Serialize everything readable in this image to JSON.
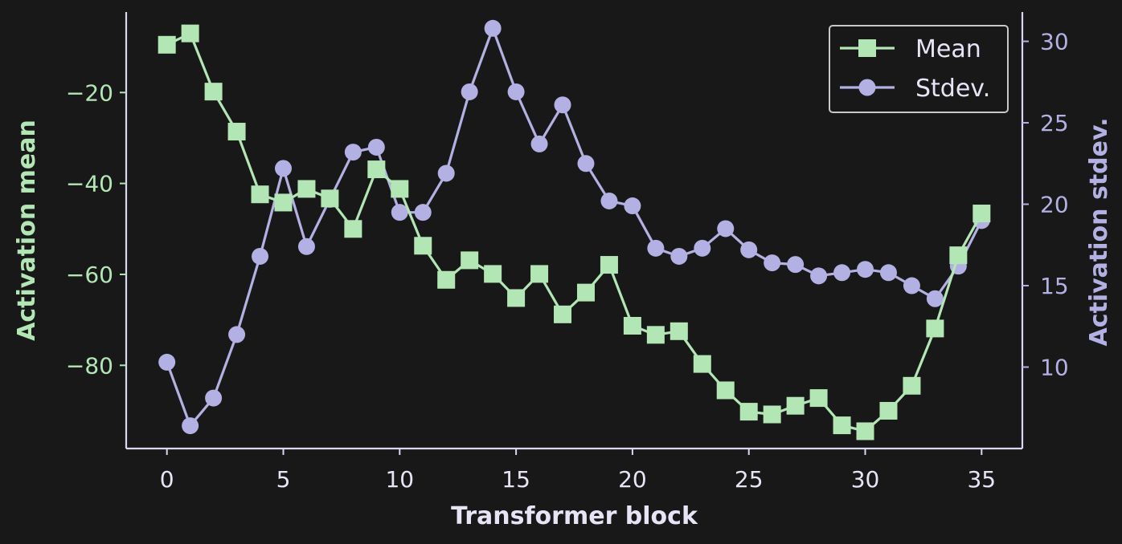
{
  "colors": {
    "background": "#181818",
    "mean": "#b3e6b5",
    "stdev": "#b3b0e3",
    "axis": "#d8d8f0",
    "x_text": "#e6e4f5",
    "legend_border": "#c8c8c8"
  },
  "chart_data": {
    "type": "line",
    "x_axis": {
      "label": "Transformer block",
      "ticks": [
        0,
        5,
        10,
        15,
        20,
        25,
        30,
        35
      ],
      "range": [
        -1.75,
        36.75
      ]
    },
    "y_left": {
      "label": "Activation mean",
      "ticks": [
        -20,
        -40,
        -60,
        -80
      ],
      "tick_labels": [
        "−20",
        "−40",
        "−60",
        "−80"
      ],
      "range": [
        -98.3,
        -2.3
      ]
    },
    "y_right": {
      "label": "Activation stdev.",
      "ticks": [
        10,
        15,
        20,
        25,
        30
      ],
      "tick_labels": [
        "10",
        "15",
        "20",
        "25",
        "30"
      ],
      "range": [
        5.0,
        31.8
      ]
    },
    "x": [
      0,
      1,
      2,
      3,
      4,
      5,
      6,
      7,
      8,
      9,
      10,
      11,
      12,
      13,
      14,
      15,
      16,
      17,
      18,
      19,
      20,
      21,
      22,
      23,
      24,
      25,
      26,
      27,
      28,
      29,
      30,
      31,
      32,
      33,
      34,
      35
    ],
    "series": [
      {
        "name": "Mean",
        "axis": "left",
        "marker": "square",
        "values": [
          -9.5,
          -7.0,
          -19.8,
          -28.6,
          -42.4,
          -44.2,
          -41.2,
          -43.3,
          -50.0,
          -36.9,
          -41.2,
          -53.7,
          -61.2,
          -56.9,
          -59.9,
          -65.2,
          -59.9,
          -68.8,
          -64.0,
          -57.9,
          -71.3,
          -73.3,
          -72.5,
          -79.7,
          -85.5,
          -90.2,
          -90.8,
          -88.9,
          -87.2,
          -93.2,
          -94.5,
          -90.0,
          -84.5,
          -71.9,
          -55.8,
          -46.6
        ]
      },
      {
        "name": "Stdev.",
        "axis": "right",
        "marker": "circle",
        "values": [
          10.3,
          6.4,
          8.1,
          12.0,
          16.8,
          22.2,
          17.4,
          20.3,
          23.2,
          23.5,
          19.5,
          19.5,
          21.9,
          26.9,
          30.8,
          26.9,
          23.7,
          26.1,
          22.5,
          20.2,
          19.9,
          17.3,
          16.8,
          17.3,
          18.5,
          17.2,
          16.4,
          16.3,
          15.6,
          15.8,
          16.0,
          15.8,
          15.0,
          14.2,
          16.2,
          19.0
        ]
      }
    ],
    "legend": {
      "position": "top-right",
      "entries": [
        "Mean",
        "Stdev."
      ]
    },
    "grid": false
  }
}
